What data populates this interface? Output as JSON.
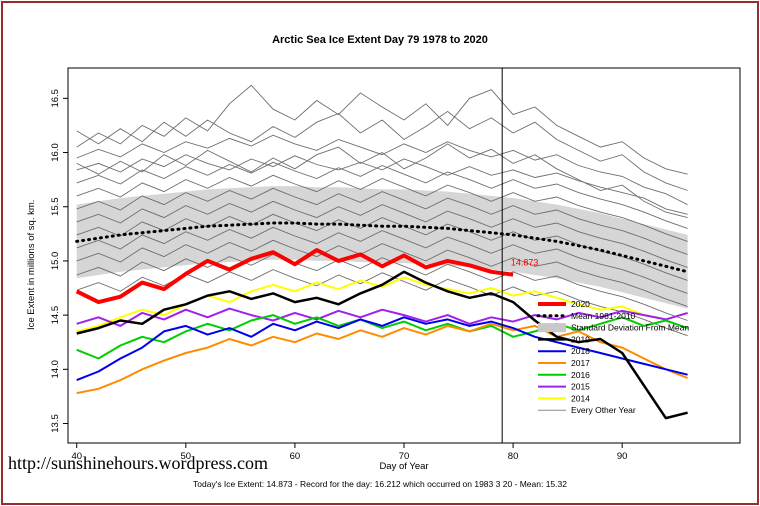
{
  "header": {
    "title": "Arctic Sea Ice Extent Day 79 1978 to 2020"
  },
  "footer": {
    "url": "http://sunshinehours.wordpress.com",
    "caption": "Today's Ice Extent: 14.873 - Record for the day: 16.212 which occurred on 1983 3 20 - Mean: 15.32"
  },
  "chart_data": {
    "type": "line",
    "title": "Arctic Sea Ice Extent Day 79 1978 to 2020",
    "xlabel": "Day of Year",
    "ylabel": "Ice Extent in millions of sq. km.",
    "xlim": [
      39.2,
      100.8
    ],
    "ylim": [
      13.32,
      16.78
    ],
    "xticks": [
      40,
      50,
      60,
      70,
      80,
      90
    ],
    "yticks": [
      13.5,
      14,
      14.5,
      15,
      15.5,
      16,
      16.5
    ],
    "grid": false,
    "legend_position": "inside-bottom-right",
    "band_color": "#D6D6D6",
    "std_dev": 0.34,
    "x": [
      40,
      42,
      44,
      46,
      48,
      50,
      52,
      54,
      56,
      58,
      60,
      62,
      64,
      66,
      68,
      70,
      72,
      74,
      76,
      78,
      80,
      82,
      84,
      86,
      88,
      90,
      92,
      94,
      96
    ],
    "mean_series": {
      "name": "Mean 1981-2010",
      "color": "#000000",
      "values": [
        15.18,
        15.21,
        15.24,
        15.26,
        15.28,
        15.3,
        15.32,
        15.33,
        15.34,
        15.35,
        15.35,
        15.34,
        15.34,
        15.33,
        15.32,
        15.32,
        15.31,
        15.3,
        15.28,
        15.26,
        15.24,
        15.21,
        15.18,
        15.14,
        15.1,
        15.05,
        15.0,
        14.95,
        14.9
      ]
    },
    "series": [
      {
        "name": "2014",
        "color": "#FFFF00",
        "width": 2,
        "values": [
          14.35,
          14.4,
          14.48,
          14.55,
          14.5,
          14.6,
          14.68,
          14.62,
          14.72,
          14.78,
          14.72,
          14.8,
          14.74,
          14.82,
          14.76,
          14.85,
          14.78,
          14.74,
          14.7,
          14.75,
          14.68,
          14.72,
          14.66,
          14.6,
          14.55,
          14.58,
          14.5,
          14.46,
          14.52
        ]
      },
      {
        "name": "2015",
        "color": "#A020F0",
        "width": 2,
        "values": [
          14.42,
          14.48,
          14.4,
          14.52,
          14.46,
          14.55,
          14.48,
          14.56,
          14.5,
          14.45,
          14.52,
          14.46,
          14.54,
          14.48,
          14.55,
          14.5,
          14.44,
          14.5,
          14.42,
          14.48,
          14.44,
          14.5,
          14.46,
          14.52,
          14.48,
          14.54,
          14.5,
          14.46,
          14.52
        ]
      },
      {
        "name": "2016",
        "color": "#00CD00",
        "width": 2,
        "values": [
          14.18,
          14.1,
          14.22,
          14.3,
          14.25,
          14.35,
          14.42,
          14.36,
          14.45,
          14.5,
          14.42,
          14.48,
          14.4,
          14.46,
          14.38,
          14.44,
          14.36,
          14.42,
          14.35,
          14.4,
          14.3,
          14.35,
          14.42,
          14.36,
          14.42,
          14.48,
          14.4,
          14.45,
          14.38
        ]
      },
      {
        "name": "2017",
        "color": "#FF8C00",
        "width": 2,
        "values": [
          13.78,
          13.82,
          13.9,
          14.0,
          14.08,
          14.15,
          14.2,
          14.28,
          14.22,
          14.3,
          14.25,
          14.33,
          14.28,
          14.36,
          14.3,
          14.38,
          14.32,
          14.4,
          14.35,
          14.42,
          14.36,
          14.4,
          14.3,
          14.35,
          14.25,
          14.2,
          14.1,
          14.0,
          13.92
        ]
      },
      {
        "name": "2018",
        "color": "#0000EE",
        "width": 2,
        "values": [
          13.9,
          13.98,
          14.1,
          14.2,
          14.35,
          14.4,
          14.32,
          14.38,
          14.3,
          14.42,
          14.36,
          14.44,
          14.38,
          14.46,
          14.4,
          14.48,
          14.42,
          14.46,
          14.4,
          14.44,
          14.38,
          14.3,
          14.25,
          14.2,
          14.15,
          14.1,
          14.05,
          14.0,
          13.95
        ]
      },
      {
        "name": "2019",
        "color": "#000000",
        "width": 2.5,
        "values": [
          14.33,
          14.38,
          14.45,
          14.42,
          14.55,
          14.6,
          14.68,
          14.72,
          14.65,
          14.7,
          14.62,
          14.66,
          14.6,
          14.7,
          14.78,
          14.9,
          14.8,
          14.72,
          14.66,
          14.7,
          14.62,
          14.45,
          14.3,
          14.25,
          14.28,
          14.15,
          13.85,
          13.55,
          13.6
        ]
      },
      {
        "name": "2020",
        "color": "#FF0000",
        "width": 4,
        "values": [
          14.72,
          14.62,
          14.67,
          14.8,
          14.74,
          14.88,
          15.0,
          14.92,
          15.02,
          15.08,
          14.97,
          15.1,
          15.0,
          15.06,
          14.95,
          15.05,
          14.94,
          15.0,
          14.96,
          14.9,
          14.873,
          null,
          null,
          null,
          null,
          null,
          null,
          null,
          null
        ]
      }
    ],
    "background_series": {
      "name": "Every Other Year",
      "color": "#6E6E6E",
      "width": 0.9,
      "lines": [
        [
          16.05,
          16.18,
          16.08,
          16.25,
          16.15,
          16.32,
          16.2,
          16.45,
          16.62,
          16.4,
          16.3,
          16.48,
          16.35,
          16.55,
          16.42,
          16.3,
          16.45,
          16.25,
          16.5,
          16.58,
          16.35,
          16.42,
          16.25,
          16.15,
          16.05,
          16.1,
          15.95,
          15.85,
          15.8
        ],
        [
          16.2,
          16.08,
          16.22,
          16.1,
          16.28,
          16.15,
          16.3,
          16.18,
          16.1,
          16.24,
          16.14,
          16.28,
          16.36,
          16.18,
          16.3,
          16.12,
          16.24,
          16.38,
          16.22,
          16.32,
          16.18,
          16.28,
          16.12,
          16.02,
          15.92,
          15.98,
          15.82,
          15.72,
          15.65
        ],
        [
          15.95,
          16.03,
          15.96,
          16.08,
          16.0,
          16.1,
          16.04,
          16.13,
          16.06,
          16.16,
          16.08,
          16.02,
          16.12,
          16.05,
          15.98,
          16.08,
          16.0,
          16.1,
          16.02,
          15.96,
          16.02,
          15.93,
          15.98,
          15.88,
          15.82,
          15.78,
          15.68,
          15.62,
          15.52
        ],
        [
          15.84,
          15.9,
          15.82,
          15.94,
          15.87,
          15.98,
          15.9,
          15.84,
          15.94,
          15.87,
          15.97,
          15.89,
          15.84,
          15.91,
          15.84,
          15.94,
          15.87,
          15.79,
          15.87,
          15.79,
          15.84,
          15.77,
          15.81,
          15.74,
          15.68,
          15.63,
          15.58,
          15.48,
          15.43
        ],
        [
          15.72,
          15.79,
          15.71,
          15.84,
          15.76,
          15.87,
          15.79,
          15.89,
          15.81,
          15.91,
          15.83,
          15.76,
          15.86,
          15.78,
          15.88,
          15.8,
          15.72,
          15.82,
          15.75,
          15.67,
          15.75,
          15.67,
          15.71,
          15.63,
          15.57,
          15.52,
          15.45,
          15.37,
          15.3
        ],
        [
          15.6,
          15.67,
          15.59,
          15.72,
          15.64,
          15.75,
          15.67,
          15.77,
          15.69,
          15.79,
          15.71,
          15.64,
          15.74,
          15.66,
          15.76,
          15.68,
          15.6,
          15.7,
          15.63,
          15.55,
          15.63,
          15.55,
          15.59,
          15.51,
          15.45,
          15.4,
          15.33,
          15.25,
          15.18
        ],
        [
          15.48,
          15.55,
          15.47,
          15.6,
          15.52,
          15.63,
          15.55,
          15.65,
          15.57,
          15.67,
          15.59,
          15.52,
          15.62,
          15.54,
          15.64,
          15.56,
          15.48,
          15.58,
          15.51,
          15.43,
          15.51,
          15.43,
          15.47,
          15.39,
          15.33,
          15.28,
          15.21,
          15.13,
          15.06
        ],
        [
          15.36,
          15.43,
          15.35,
          15.48,
          15.4,
          15.51,
          15.43,
          15.53,
          15.45,
          15.55,
          15.47,
          15.4,
          15.5,
          15.42,
          15.52,
          15.44,
          15.36,
          15.46,
          15.39,
          15.31,
          15.39,
          15.31,
          15.35,
          15.27,
          15.21,
          15.16,
          15.09,
          15.01,
          14.94
        ],
        [
          15.24,
          15.31,
          15.23,
          15.36,
          15.28,
          15.39,
          15.31,
          15.41,
          15.33,
          15.43,
          15.35,
          15.28,
          15.38,
          15.3,
          15.4,
          15.32,
          15.24,
          15.34,
          15.27,
          15.19,
          15.27,
          15.19,
          15.23,
          15.15,
          15.09,
          15.04,
          14.97,
          14.89,
          14.82
        ],
        [
          15.12,
          15.19,
          15.11,
          15.24,
          15.16,
          15.27,
          15.19,
          15.29,
          15.21,
          15.31,
          15.23,
          15.16,
          15.26,
          15.18,
          15.28,
          15.2,
          15.12,
          15.22,
          15.15,
          15.07,
          15.15,
          15.07,
          15.11,
          15.03,
          14.97,
          14.92,
          14.85,
          14.77,
          14.7
        ],
        [
          15.0,
          15.07,
          14.99,
          15.12,
          15.04,
          15.15,
          15.07,
          15.17,
          15.09,
          15.19,
          15.11,
          15.04,
          15.14,
          15.06,
          15.16,
          15.08,
          15.0,
          15.1,
          15.03,
          14.95,
          15.03,
          14.95,
          14.99,
          14.91,
          14.85,
          14.8,
          14.73,
          14.65,
          14.58
        ],
        [
          14.87,
          14.94,
          14.86,
          14.99,
          14.91,
          15.02,
          14.94,
          15.04,
          14.96,
          15.06,
          14.98,
          14.91,
          15.01,
          14.93,
          15.03,
          14.95,
          14.87,
          14.97,
          14.9,
          14.82,
          14.9,
          14.82,
          14.86,
          14.78,
          14.72,
          14.67,
          14.6,
          14.52,
          14.45
        ],
        [
          14.73,
          14.8,
          14.72,
          14.85,
          14.77,
          14.88,
          14.8,
          14.9,
          14.82,
          14.92,
          14.84,
          14.77,
          14.87,
          14.79,
          14.89,
          14.81,
          14.73,
          14.83,
          14.76,
          14.68,
          14.76,
          14.68,
          14.72,
          14.64,
          14.58,
          14.53,
          14.46,
          14.38,
          14.31
        ],
        [
          15.9,
          15.8,
          15.92,
          15.82,
          15.98,
          15.88,
          16.02,
          15.92,
          15.82,
          15.95,
          15.85,
          15.98,
          16.05,
          15.9,
          16.0,
          15.85,
          15.95,
          16.08,
          15.95,
          16.03,
          15.9,
          15.98,
          15.85,
          15.75,
          15.65,
          15.7,
          15.55,
          15.45,
          15.4
        ]
      ]
    },
    "marker": {
      "day": 79,
      "label": "14.873",
      "label_color": "#FF0000",
      "label_x": 79.8,
      "label_y": 14.96
    },
    "legend": [
      {
        "label": "2020",
        "color": "#FF0000",
        "width": 4,
        "dash": ""
      },
      {
        "label": "Mean 1981-2010",
        "color": "#000000",
        "width": 3,
        "dash": "dot"
      },
      {
        "label": "Standard Deviation From Mean",
        "color": "#C9C9C9",
        "width": 9,
        "dash": ""
      },
      {
        "label": "2019",
        "color": "#000000",
        "width": 2.5,
        "dash": ""
      },
      {
        "label": "2018",
        "color": "#0000EE",
        "width": 2,
        "dash": ""
      },
      {
        "label": "2017",
        "color": "#FF8C00",
        "width": 2,
        "dash": ""
      },
      {
        "label": "2016",
        "color": "#00CD00",
        "width": 2,
        "dash": ""
      },
      {
        "label": "2015",
        "color": "#A020F0",
        "width": 2,
        "dash": ""
      },
      {
        "label": "2014",
        "color": "#FFFF00",
        "width": 2,
        "dash": ""
      },
      {
        "label": "Every Other Year",
        "color": "#8C8C8C",
        "width": 1,
        "dash": ""
      }
    ]
  }
}
